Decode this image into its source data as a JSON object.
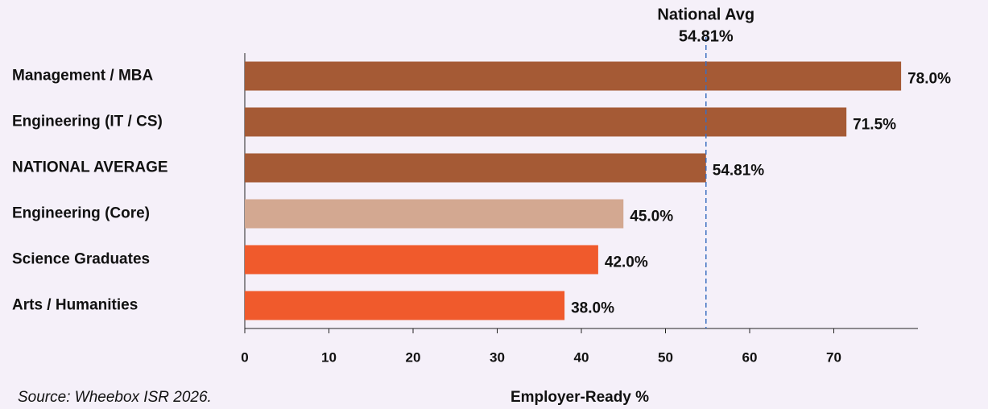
{
  "chart_data": {
    "type": "bar",
    "orientation": "horizontal",
    "categories": [
      "Management / MBA",
      "Engineering (IT / CS)",
      "NATIONAL AVERAGE",
      "Engineering (Core)",
      "Science Graduates",
      "Arts / Humanities"
    ],
    "values": [
      78.0,
      71.5,
      54.81,
      45.0,
      42.0,
      38.0
    ],
    "value_labels": [
      "78.0%",
      "71.5%",
      "54.81%",
      "45.0%",
      "42.0%",
      "38.0%"
    ],
    "colors": [
      "#a55a35",
      "#a55a35",
      "#a55a35",
      "#d3a891",
      "#f05a2c",
      "#f05a2c"
    ],
    "xlim": [
      0,
      80
    ],
    "xticks": [
      0,
      10,
      20,
      30,
      40,
      50,
      60,
      70
    ],
    "xlabel": "Employer-Ready %",
    "reference": {
      "title": "National Avg",
      "value": 54.81,
      "label": "54.81%",
      "color": "#f05a2c"
    },
    "source": "Source: Wheebox ISR 2026."
  }
}
